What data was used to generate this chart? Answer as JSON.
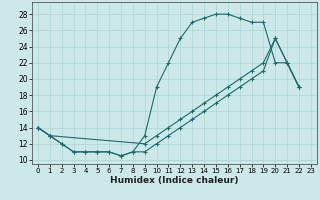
{
  "xlabel": "Humidex (Indice chaleur)",
  "xlim": [
    -0.5,
    23.5
  ],
  "ylim": [
    9.5,
    29.5
  ],
  "xticks": [
    0,
    1,
    2,
    3,
    4,
    5,
    6,
    7,
    8,
    9,
    10,
    11,
    12,
    13,
    14,
    15,
    16,
    17,
    18,
    19,
    20,
    21,
    22,
    23
  ],
  "yticks": [
    10,
    12,
    14,
    16,
    18,
    20,
    22,
    24,
    26,
    28
  ],
  "background_color": "#cde8e8",
  "grid_color": "#aad4d4",
  "line_color": "#1a6b6b",
  "curve1_x": [
    0,
    1,
    2,
    3,
    4,
    5,
    6,
    7,
    8,
    9,
    10,
    11,
    12,
    13,
    14,
    15,
    16,
    17,
    18,
    19,
    20,
    21,
    22
  ],
  "curve1_y": [
    14,
    13,
    12,
    11,
    11,
    11,
    11,
    10.5,
    11,
    13,
    19,
    22,
    25,
    27,
    27.5,
    28,
    28,
    27.5,
    27,
    27,
    22,
    22,
    19
  ],
  "curve2_x": [
    0,
    1,
    2,
    3,
    4,
    5,
    6,
    7,
    8,
    9,
    10,
    11,
    12,
    13,
    14,
    15,
    16,
    17,
    18,
    19,
    20,
    21,
    22
  ],
  "curve2_y": [
    14,
    13,
    12,
    11,
    11,
    11,
    11,
    10.5,
    11,
    11,
    12,
    13,
    14,
    15,
    16,
    17,
    18,
    19,
    20,
    21,
    25,
    22,
    19
  ],
  "curve3_x": [
    0,
    1,
    9,
    10,
    11,
    12,
    13,
    14,
    15,
    16,
    17,
    18,
    19,
    20,
    21,
    22
  ],
  "curve3_y": [
    14,
    13,
    12,
    13,
    14,
    15,
    16,
    17,
    18,
    19,
    20,
    21,
    22,
    25,
    22,
    19
  ],
  "figsize": [
    3.2,
    2.0
  ],
  "dpi": 100
}
